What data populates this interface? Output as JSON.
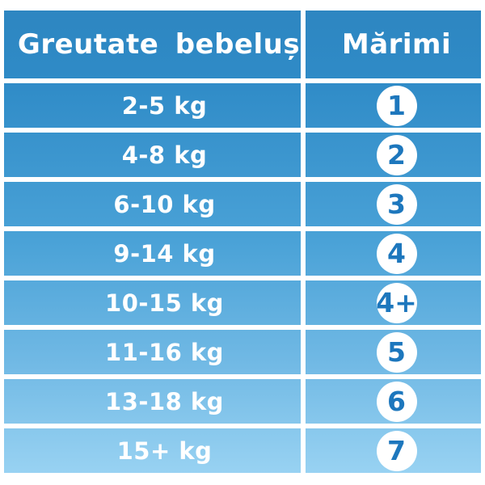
{
  "chart_data": {
    "type": "table",
    "columns": [
      "Greutate bebeluș",
      "Mărimi"
    ],
    "rows": [
      [
        "2-5 kg",
        "1"
      ],
      [
        "4-8 kg",
        "2"
      ],
      [
        "6-10 kg",
        "3"
      ],
      [
        "9-14 kg",
        "4"
      ],
      [
        "10-15 kg",
        "4+"
      ],
      [
        "11-16 kg",
        "5"
      ],
      [
        "13-18 kg",
        "6"
      ],
      [
        "15+ kg",
        "7"
      ]
    ],
    "layout": {
      "legend": "none",
      "grid": "white separators between rows and columns",
      "background": "vertical blue gradient, dark at top to light at bottom"
    }
  },
  "table": {
    "header": {
      "weight_label": "Greutate bebeluș",
      "size_label": "Mărimi"
    },
    "rows": [
      {
        "weight": "2-5 kg",
        "size": "1"
      },
      {
        "weight": "4-8 kg",
        "size": "2"
      },
      {
        "weight": "6-10 kg",
        "size": "3"
      },
      {
        "weight": "9-14 kg",
        "size": "4"
      },
      {
        "weight": "10-15 kg",
        "size": "4+"
      },
      {
        "weight": "11-16 kg",
        "size": "5"
      },
      {
        "weight": "13-18 kg",
        "size": "6"
      },
      {
        "weight": "15+ kg",
        "size": "7"
      }
    ],
    "colors": {
      "gradient_top": "#2E86C1",
      "gradient_upper": "#2F8BC7",
      "gradient_mid": "#4AA2D7",
      "gradient_lower": "#6FB8E4",
      "gradient_bottom": "#98D2F2",
      "separator": "#FFFFFF",
      "text": "#FFFFFF",
      "badge_bg": "#FFFFFF",
      "badge_text": "#1D77BD"
    }
  }
}
